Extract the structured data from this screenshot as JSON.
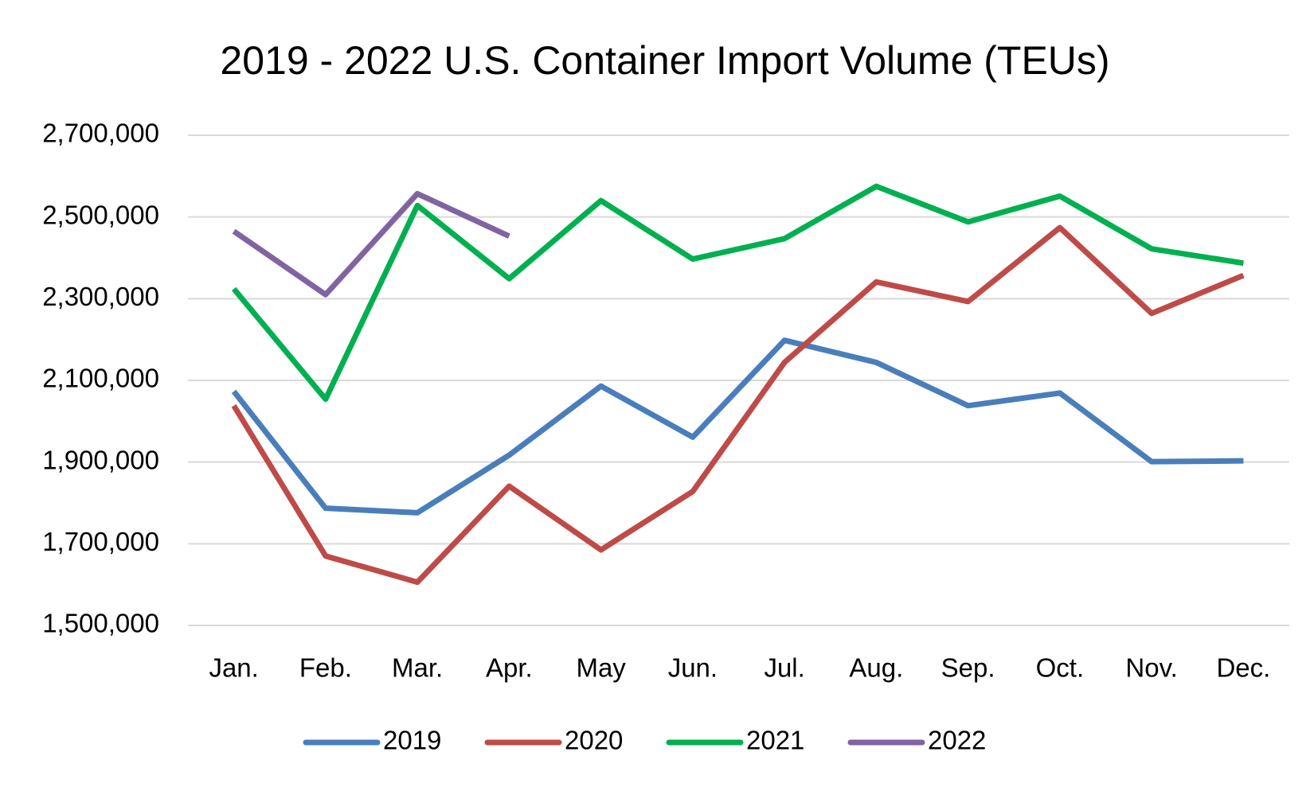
{
  "chart_data": {
    "type": "line",
    "title": "2019 - 2022 U.S. Container Import Volume (TEUs)",
    "categories": [
      "Jan.",
      "Feb.",
      "Mar.",
      "Apr.",
      "May",
      "Jun.",
      "Jul.",
      "Aug.",
      "Sep.",
      "Oct.",
      "Nov.",
      "Dec."
    ],
    "series": [
      {
        "name": "2019",
        "color": "#4a7ebb",
        "values": [
          2073000,
          1787000,
          1776000,
          1917000,
          2086000,
          1961000,
          2198000,
          2144000,
          2038000,
          2069000,
          1901000,
          1903000
        ]
      },
      {
        "name": "2020",
        "color": "#be4b48",
        "values": [
          2038000,
          1670000,
          1606000,
          1841000,
          1685000,
          1828000,
          2144000,
          2341000,
          2293000,
          2474000,
          2264000,
          2357000
        ]
      },
      {
        "name": "2021",
        "color": "#00b050",
        "values": [
          2324000,
          2054000,
          2528000,
          2349000,
          2540000,
          2397000,
          2447000,
          2575000,
          2488000,
          2551000,
          2422000,
          2387000
        ]
      },
      {
        "name": "2022",
        "color": "#8064a2",
        "values": [
          2465000,
          2310000,
          2557000,
          2453000,
          null,
          null,
          null,
          null,
          null,
          null,
          null,
          null
        ]
      }
    ],
    "ylim": [
      1500000,
      2700000
    ],
    "yticks": [
      {
        "value": 1500000,
        "label": "1,500,000"
      },
      {
        "value": 1700000,
        "label": "1,700,000"
      },
      {
        "value": 1900000,
        "label": "1,900,000"
      },
      {
        "value": 2100000,
        "label": "2,100,000"
      },
      {
        "value": 2300000,
        "label": "2,300,000"
      },
      {
        "value": 2500000,
        "label": "2,500,000"
      },
      {
        "value": 2700000,
        "label": "2,700,000"
      }
    ],
    "grid": true,
    "legend": "bottom"
  }
}
